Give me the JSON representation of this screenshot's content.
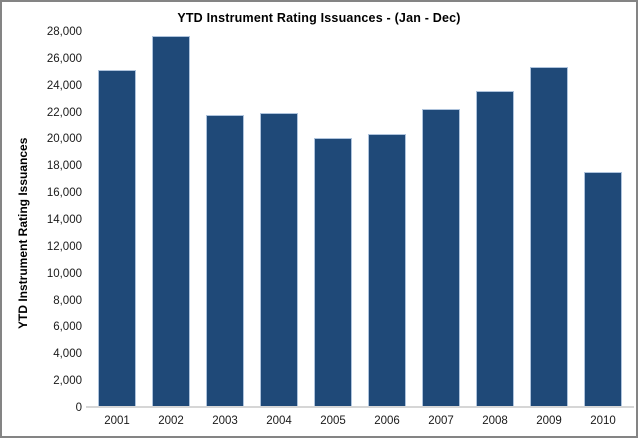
{
  "window": {
    "background": "#ffffff",
    "border_color": "#848484"
  },
  "chart_data": {
    "type": "bar",
    "title": "YTD Instrument Rating Issuances - (Jan - Dec)",
    "xlabel": "",
    "ylabel": "YTD Instrument Rating Issuances",
    "categories": [
      "2001",
      "2002",
      "2003",
      "2004",
      "2005",
      "2006",
      "2007",
      "2008",
      "2009",
      "2010"
    ],
    "values": [
      25200,
      27700,
      21800,
      22000,
      20100,
      20400,
      22300,
      23600,
      25400,
      17600
    ],
    "ylim": [
      0,
      28000
    ],
    "ytick_step": 2000,
    "ytick_labels": [
      "0",
      "2,000",
      "4,000",
      "6,000",
      "8,000",
      "10,000",
      "12,000",
      "14,000",
      "16,000",
      "18,000",
      "20,000",
      "22,000",
      "24,000",
      "26,000",
      "28,000"
    ],
    "grid": false,
    "legend_position": "none",
    "bar_color": "#1f4978",
    "bar_border_color": "#aec3dc",
    "baseline_color": "#d6d6d6"
  }
}
